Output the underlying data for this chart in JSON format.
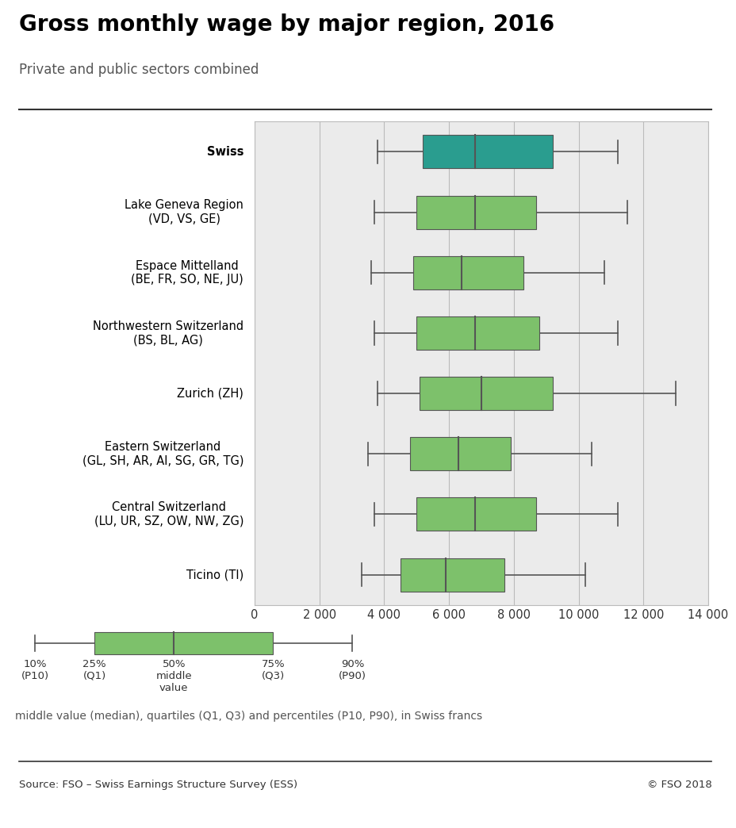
{
  "title": "Gross monthly wage by major region, 2016",
  "subtitle": "Private and public sectors combined",
  "source": "Source: FSO – Swiss Earnings Structure Survey (ESS)",
  "copyright": "© FSO 2018",
  "footnote": "middle value (median), quartiles (Q1, Q3) and percentiles (P10, P90), in Swiss francs",
  "xlim": [
    0,
    14000
  ],
  "xticks": [
    0,
    2000,
    4000,
    6000,
    8000,
    10000,
    12000,
    14000
  ],
  "xtick_labels": [
    "0",
    "2 000",
    "4 000",
    "6 000",
    "8 000",
    "10 000",
    "12 000",
    "14 000"
  ],
  "regions": [
    "Swiss",
    "Lake Geneva Region\n(VD, VS, GE)",
    "Espace Mittelland\n(BE, FR, SO, NE, JU)",
    "Northwestern Switzerland\n(BS, BL, AG)",
    "Zurich (ZH)",
    "Eastern Switzerland\n(GL, SH, AR, AI, SG, GR, TG)",
    "Central Switzerland\n(LU, UR, SZ, OW, NW, ZG)",
    "Ticino (TI)"
  ],
  "boxes": [
    {
      "p10": 3800,
      "q1": 5200,
      "median": 6800,
      "q3": 9200,
      "p90": 11200,
      "color": "#2a9d8f",
      "bold": true
    },
    {
      "p10": 3700,
      "q1": 5000,
      "median": 6800,
      "q3": 8700,
      "p90": 11500,
      "color": "#7dc16b",
      "bold": false
    },
    {
      "p10": 3600,
      "q1": 4900,
      "median": 6400,
      "q3": 8300,
      "p90": 10800,
      "color": "#7dc16b",
      "bold": false
    },
    {
      "p10": 3700,
      "q1": 5000,
      "median": 6800,
      "q3": 8800,
      "p90": 11200,
      "color": "#7dc16b",
      "bold": false
    },
    {
      "p10": 3800,
      "q1": 5100,
      "median": 7000,
      "q3": 9200,
      "p90": 13000,
      "color": "#7dc16b",
      "bold": false
    },
    {
      "p10": 3500,
      "q1": 4800,
      "median": 6300,
      "q3": 7900,
      "p90": 10400,
      "color": "#7dc16b",
      "bold": false
    },
    {
      "p10": 3700,
      "q1": 5000,
      "median": 6800,
      "q3": 8700,
      "p90": 11200,
      "color": "#7dc16b",
      "bold": false
    },
    {
      "p10": 3300,
      "q1": 4500,
      "median": 5900,
      "q3": 7700,
      "p90": 10200,
      "color": "#7dc16b",
      "bold": false
    }
  ],
  "plot_bg_color": "#ebebeb",
  "grid_color": "#bbbbbb",
  "box_edge_color": "#555555",
  "whisker_color": "#555555",
  "legend_box": {
    "p10": 0.5,
    "q1": 2.0,
    "median": 4.0,
    "q3": 6.5,
    "p90": 8.5
  },
  "legend_color": "#7dc16b"
}
